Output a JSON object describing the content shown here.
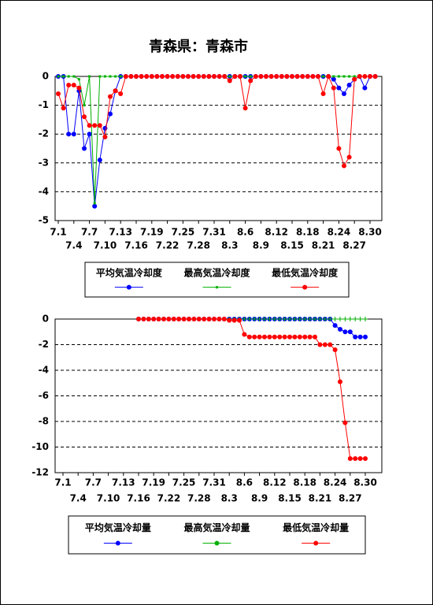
{
  "chart_data": [
    {
      "type": "line",
      "title": "青森県：青森市",
      "categories": [
        "7.1",
        null,
        null,
        "7.4",
        null,
        null,
        "7.7",
        null,
        null,
        "7.10",
        null,
        null,
        "7.13",
        null,
        null,
        "7.16",
        null,
        null,
        "7.19",
        null,
        null,
        "7.22",
        null,
        null,
        "7.25",
        null,
        null,
        "7.28",
        null,
        null,
        "7.31",
        null,
        null,
        "8.3",
        null,
        null,
        "8.6",
        null,
        null,
        "8.9",
        null,
        null,
        "8.12",
        null,
        null,
        "8.15",
        null,
        null,
        "8.18",
        null,
        null,
        "8.21",
        null,
        null,
        "8.24",
        null,
        null,
        "8.27",
        null,
        null,
        "8.30",
        null
      ],
      "ylim": [
        -5,
        0
      ],
      "yticks": [
        -5,
        -4,
        -3,
        -2,
        -1,
        0
      ],
      "grid": true,
      "legend": "bottom",
      "series": [
        {
          "name": "平均気温冷却度",
          "color": "#0000ff",
          "marker": "circle",
          "values": [
            0,
            0,
            -2,
            -2,
            -0.5,
            -2.5,
            -2,
            -4.5,
            -2.9,
            -1.8,
            -1.3,
            -0.5,
            0,
            0,
            0,
            0,
            0,
            0,
            0,
            0,
            0,
            0,
            0,
            0,
            0,
            0,
            0,
            0,
            0,
            0,
            0,
            0,
            0,
            0,
            0,
            0,
            0,
            0,
            0,
            0,
            0,
            0,
            0,
            0,
            0,
            0,
            0,
            0,
            0,
            0,
            0,
            0,
            0,
            -0.1,
            -0.4,
            -0.6,
            -0.3,
            -0.1,
            0,
            -0.4,
            0,
            0
          ]
        },
        {
          "name": "最高気温冷却度",
          "color": "#00b000",
          "marker": "square",
          "values": [
            0,
            0,
            0,
            0,
            -0.1,
            -1,
            0,
            -4.4,
            0,
            0,
            0,
            0,
            0,
            0,
            0,
            0,
            0,
            0,
            0,
            0,
            0,
            0,
            0,
            0,
            0,
            0,
            0,
            0,
            0,
            0,
            0,
            0,
            0,
            0,
            0,
            0,
            0,
            0,
            0,
            0,
            0,
            0,
            0,
            0,
            0,
            0,
            0,
            0,
            0,
            0,
            0,
            0,
            0,
            0,
            0,
            0,
            0,
            0,
            0,
            0,
            0,
            0
          ]
        },
        {
          "name": "最低気温冷却度",
          "color": "#ff0000",
          "marker": "circle",
          "values": [
            -0.6,
            -1.1,
            -0.3,
            -0.3,
            -0.4,
            -1.4,
            -1.7,
            -1.7,
            -1.7,
            -2.1,
            -0.7,
            -0.5,
            -0.6,
            0,
            0,
            0,
            0,
            0,
            0,
            0,
            0,
            0,
            0,
            0,
            0,
            0,
            0,
            0,
            0,
            0,
            0,
            0,
            0,
            -0.15,
            0,
            0,
            -1.1,
            -0.15,
            0,
            0,
            0,
            0,
            0,
            0,
            0,
            0,
            0,
            0,
            0,
            0,
            0,
            -0.6,
            0,
            -0.4,
            -2.5,
            -3.1,
            -2.8,
            -0.1,
            0,
            0,
            0,
            0
          ]
        }
      ]
    },
    {
      "type": "line",
      "categories": [
        "7.1",
        null,
        null,
        "7.4",
        null,
        null,
        "7.7",
        null,
        null,
        "7.10",
        null,
        null,
        "7.13",
        null,
        null,
        "7.16",
        null,
        null,
        "7.19",
        null,
        null,
        "7.22",
        null,
        null,
        "7.25",
        null,
        null,
        "7.28",
        null,
        null,
        "7.31",
        null,
        null,
        "8.3",
        null,
        null,
        "8.6",
        null,
        null,
        "8.9",
        null,
        null,
        "8.12",
        null,
        null,
        "8.15",
        null,
        null,
        "8.18",
        null,
        null,
        "8.21",
        null,
        null,
        "8.24",
        null,
        null,
        "8.27",
        null,
        null,
        "8.30",
        null
      ],
      "ylim": [
        -12,
        0
      ],
      "yticks": [
        -12,
        -10,
        -8,
        -6,
        -4,
        -2,
        0
      ],
      "grid": true,
      "legend": "bottom",
      "series": [
        {
          "name": "平均気温冷却量",
          "color": "#0000ff",
          "marker": "circle",
          "values": [
            null,
            null,
            null,
            null,
            null,
            null,
            null,
            null,
            null,
            null,
            null,
            null,
            null,
            null,
            null,
            0,
            0,
            0,
            0,
            0,
            0,
            0,
            0,
            0,
            0,
            0,
            0,
            0,
            0,
            0,
            0,
            0,
            0,
            0,
            0,
            0,
            0,
            0,
            0,
            0,
            0,
            0,
            0,
            0,
            0,
            0,
            0,
            0,
            0,
            0,
            0,
            0,
            0,
            0,
            -0.5,
            -0.8,
            -1,
            -1,
            -1.4,
            -1.4,
            -1.4,
            null
          ]
        },
        {
          "name": "最高気温冷却量",
          "color": "#00b000",
          "marker": "plus",
          "values": [
            null,
            null,
            null,
            null,
            null,
            null,
            null,
            null,
            null,
            null,
            null,
            null,
            null,
            null,
            null,
            0,
            0,
            0,
            0,
            0,
            0,
            0,
            0,
            0,
            0,
            0,
            0,
            0,
            0,
            0,
            0,
            0,
            0,
            0,
            0,
            0,
            0,
            0,
            0,
            0,
            0,
            0,
            0,
            0,
            0,
            0,
            0,
            0,
            0,
            0,
            0,
            0,
            0,
            0,
            0,
            0,
            0,
            0,
            0,
            0,
            0,
            null
          ]
        },
        {
          "name": "最低気温冷却量",
          "color": "#ff0000",
          "marker": "circle",
          "values": [
            null,
            null,
            null,
            null,
            null,
            null,
            null,
            null,
            null,
            null,
            null,
            null,
            null,
            null,
            null,
            0,
            0,
            0,
            0,
            0,
            0,
            0,
            0,
            0,
            0,
            0,
            0,
            0,
            0,
            0,
            0,
            0,
            0,
            -0.1,
            -0.1,
            -0.1,
            -1.2,
            -1.4,
            -1.4,
            -1.4,
            -1.4,
            -1.4,
            -1.4,
            -1.4,
            -1.4,
            -1.4,
            -1.4,
            -1.4,
            -1.4,
            -1.4,
            -1.4,
            -2,
            -2,
            -2,
            -2.4,
            -4.9,
            -8.1,
            -10.9,
            -10.9,
            -10.9,
            -10.9,
            null
          ]
        }
      ]
    }
  ]
}
